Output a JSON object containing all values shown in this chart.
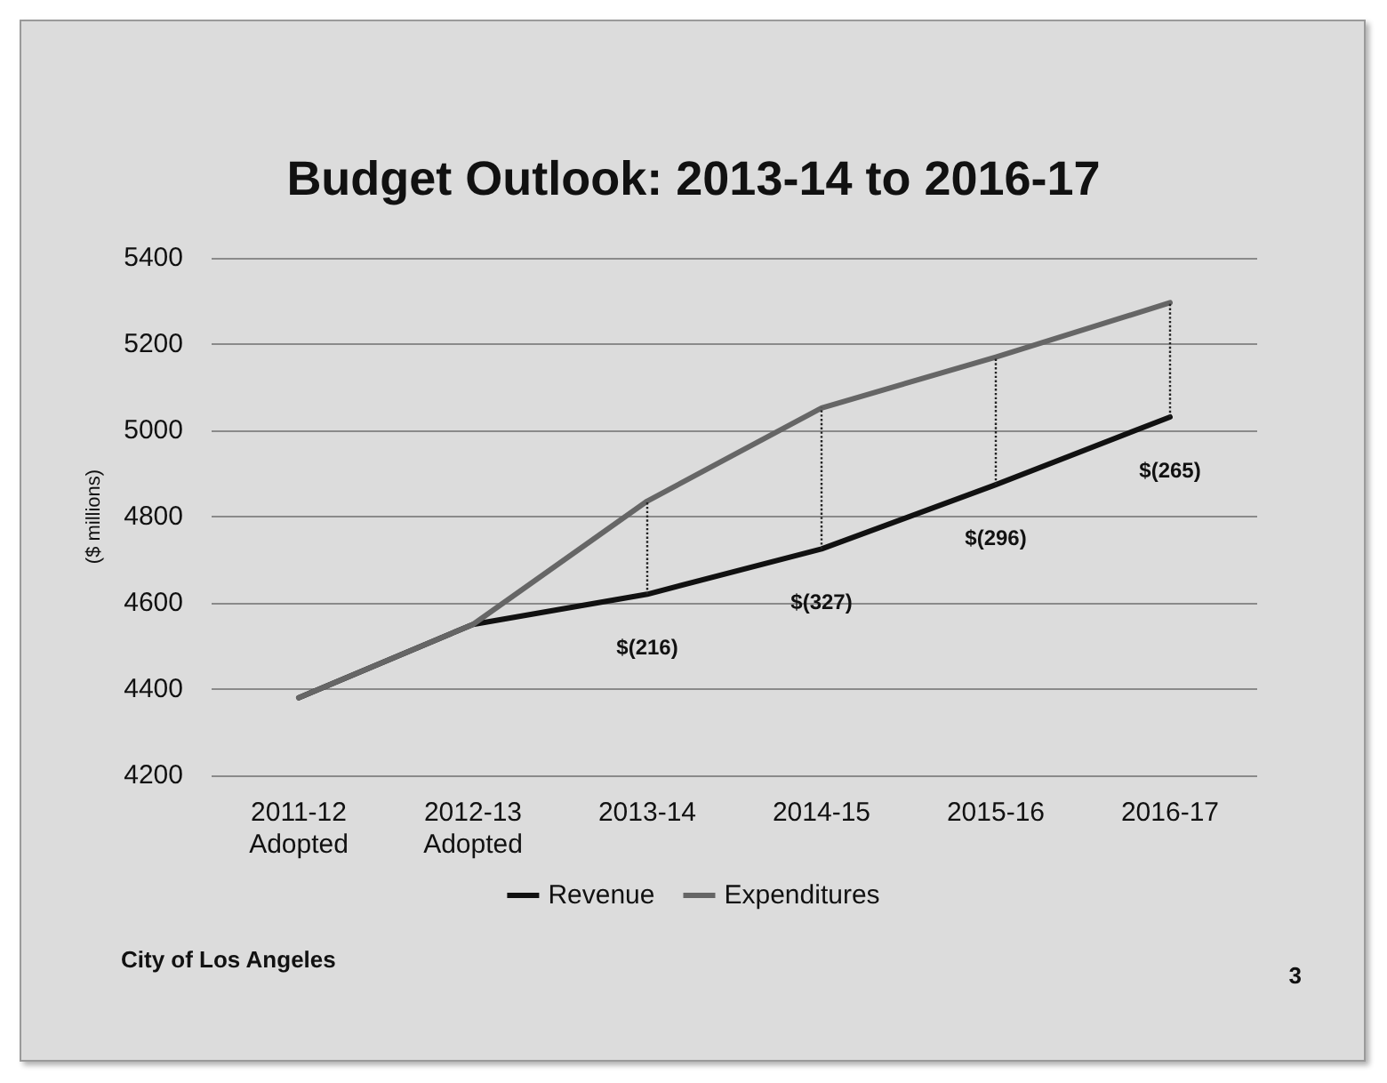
{
  "chart_data": {
    "type": "line",
    "title": "Budget Outlook: 2013-14 to 2016-17",
    "ylabel": "($ millions)",
    "categories": [
      "2011-12\nAdopted",
      "2012-13\nAdopted",
      "2013-14",
      "2014-15",
      "2015-16",
      "2016-17"
    ],
    "series": [
      {
        "name": "Revenue",
        "color": "#111111",
        "values": [
          4380,
          4550,
          4620,
          4725,
          4874,
          5031
        ]
      },
      {
        "name": "Expenditures",
        "color": "#666666",
        "values": [
          4380,
          4550,
          4836,
          5052,
          5170,
          5296
        ]
      },
      {
        "x": [
          "2013-14",
          "2013-14"
        ],
        "values": [
          4620,
          4836
        ],
        "color": "#222222",
        "line_style": "dotted"
      },
      {
        "x": [
          "2014-15",
          "2014-15"
        ],
        "values": [
          4725,
          5052
        ],
        "color": "#222222",
        "line_style": "dotted"
      },
      {
        "x": [
          "2015-16",
          "2015-16"
        ],
        "values": [
          4874,
          5170
        ],
        "color": "#222222",
        "line_style": "dotted"
      },
      {
        "x": [
          "2016-17",
          "2016-17"
        ],
        "values": [
          5031,
          5296
        ],
        "color": "#222222",
        "line_style": "dotted"
      }
    ],
    "ylim": [
      4200,
      5400
    ],
    "yticks": [
      4200,
      4400,
      4600,
      4800,
      5000,
      5200,
      5400
    ],
    "grid": "y",
    "legend": "bottom",
    "marker": "none",
    "line_style": "solid",
    "annotations": [
      {
        "text": "$(216)",
        "x": "2013-14",
        "y": 4620
      },
      {
        "text": "$(327)",
        "x": "2014-15",
        "y": 4725
      },
      {
        "text": "$(296)",
        "x": "2015-16",
        "y": 4874
      },
      {
        "text": "$(265)",
        "x": "2016-17",
        "y": 5031
      },
      "City of Los Angeles",
      "3"
    ]
  }
}
